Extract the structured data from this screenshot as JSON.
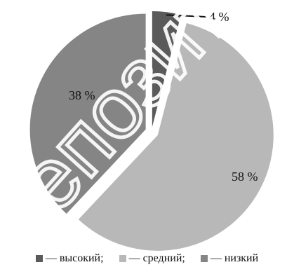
{
  "chart_data": {
    "type": "pie",
    "categories": [
      "высокий",
      "средний",
      "низкий"
    ],
    "values": [
      4,
      58,
      38
    ],
    "data_labels": [
      "4 %",
      "58 %",
      "38 %"
    ],
    "colors": [
      "#5a5a5a",
      "#b8b8b8",
      "#858585"
    ],
    "legend": {
      "position": "bottom",
      "entries": [
        "— высокий;",
        "— средний;",
        "— низкий"
      ]
    },
    "start_angle_deg": 0,
    "exploded": true,
    "title": "",
    "watermark": "репозиторий"
  }
}
